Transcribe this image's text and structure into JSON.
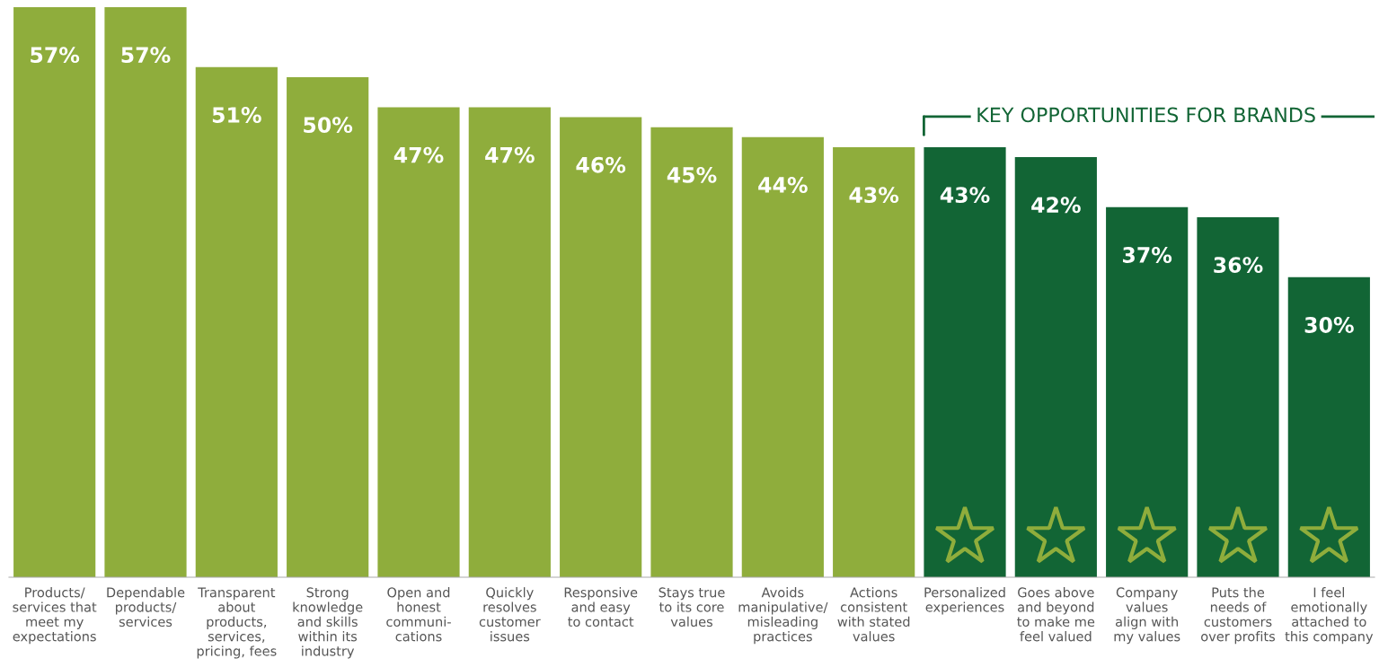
{
  "chart_data": {
    "type": "bar",
    "categories": [
      "Products/\nservices that\nmeet my\nexpectations",
      "Dependable\nproducts/\nservices",
      "Transparent\nabout\nproducts,\nservices,\npricing, fees",
      "Strong\nknowledge\nand skills\nwithin its\nindustry",
      "Open and\nhonest\ncommuni-\ncations",
      "Quickly\nresolves\ncustomer\nissues",
      "Responsive\nand easy\nto contact",
      "Stays true\nto its core\nvalues",
      "Avoids\nmanipulative/\nmisleading\npractices",
      "Actions\nconsistent\nwith stated\nvalues",
      "Personalized\nexperiences",
      "Goes above\nand beyond\nto make me\nfeel valued",
      "Company\nvalues\nalign with\nmy values",
      "Puts the\nneeds of\ncustomers\nover profits",
      "I feel\nemotionally\nattached to\nthis company"
    ],
    "values": [
      57,
      57,
      51,
      50,
      47,
      47,
      46,
      45,
      44,
      43,
      43,
      42,
      37,
      36,
      30
    ],
    "value_labels": [
      "57%",
      "57%",
      "51%",
      "50%",
      "47%",
      "47%",
      "46%",
      "45%",
      "44%",
      "43%",
      "43%",
      "42%",
      "37%",
      "36%",
      "30%"
    ],
    "colors": [
      "#8fad3c",
      "#8fad3c",
      "#8fad3c",
      "#8fad3c",
      "#8fad3c",
      "#8fad3c",
      "#8fad3c",
      "#8fad3c",
      "#8fad3c",
      "#8fad3c",
      "#126535",
      "#126535",
      "#126535",
      "#126535",
      "#126535"
    ],
    "annotations": [
      "KEY OPPORTUNITIES FOR BRANDS"
    ]
  }
}
